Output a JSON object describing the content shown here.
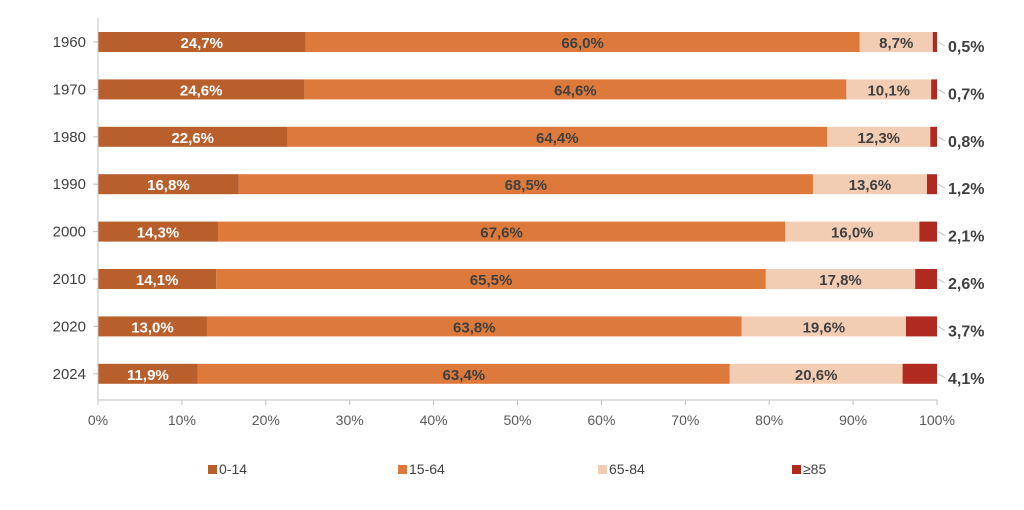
{
  "chart_data": {
    "type": "bar",
    "orientation": "horizontal",
    "stacked": true,
    "percent_stacked": true,
    "categories": [
      "1960",
      "1970",
      "1980",
      "1990",
      "2000",
      "2010",
      "2020",
      "2024"
    ],
    "series": [
      {
        "name": "0-14",
        "color": "#b85f2c",
        "values": [
          24.7,
          24.6,
          22.6,
          16.8,
          14.3,
          14.1,
          13.0,
          11.9
        ],
        "labels": [
          "24,7%",
          "24,6%",
          "22,6%",
          "16,8%",
          "14,3%",
          "14,1%",
          "13,0%",
          "11,9%"
        ]
      },
      {
        "name": "15-64",
        "color": "#dd7a3b",
        "values": [
          66.0,
          64.6,
          64.4,
          68.5,
          67.6,
          65.5,
          63.8,
          63.4
        ],
        "labels": [
          "66,0%",
          "64,6%",
          "64,4%",
          "68,5%",
          "67,6%",
          "65,5%",
          "63,8%",
          "63,4%"
        ]
      },
      {
        "name": "65-84",
        "color": "#f3cdb3",
        "values": [
          8.7,
          10.1,
          12.3,
          13.6,
          16.0,
          17.8,
          19.6,
          20.6
        ],
        "labels": [
          "8,7%",
          "10,1%",
          "12,3%",
          "13,6%",
          "16,0%",
          "17,8%",
          "19,6%",
          "20,6%"
        ]
      },
      {
        "name": "≥85",
        "color": "#b02a1f",
        "values": [
          0.5,
          0.7,
          0.8,
          1.2,
          2.1,
          2.6,
          3.7,
          4.1
        ],
        "labels": [
          "0,5%",
          "0,7%",
          "0,8%",
          "1,2%",
          "2,1%",
          "2,6%",
          "3,7%",
          "4,1%"
        ]
      }
    ],
    "x_ticks": [
      "0%",
      "10%",
      "20%",
      "30%",
      "40%",
      "50%",
      "60%",
      "70%",
      "80%",
      "90%",
      "100%"
    ],
    "xlim": [
      0,
      100
    ],
    "grid": false,
    "legend_position": "bottom",
    "title": "",
    "xlabel": "",
    "ylabel": ""
  }
}
